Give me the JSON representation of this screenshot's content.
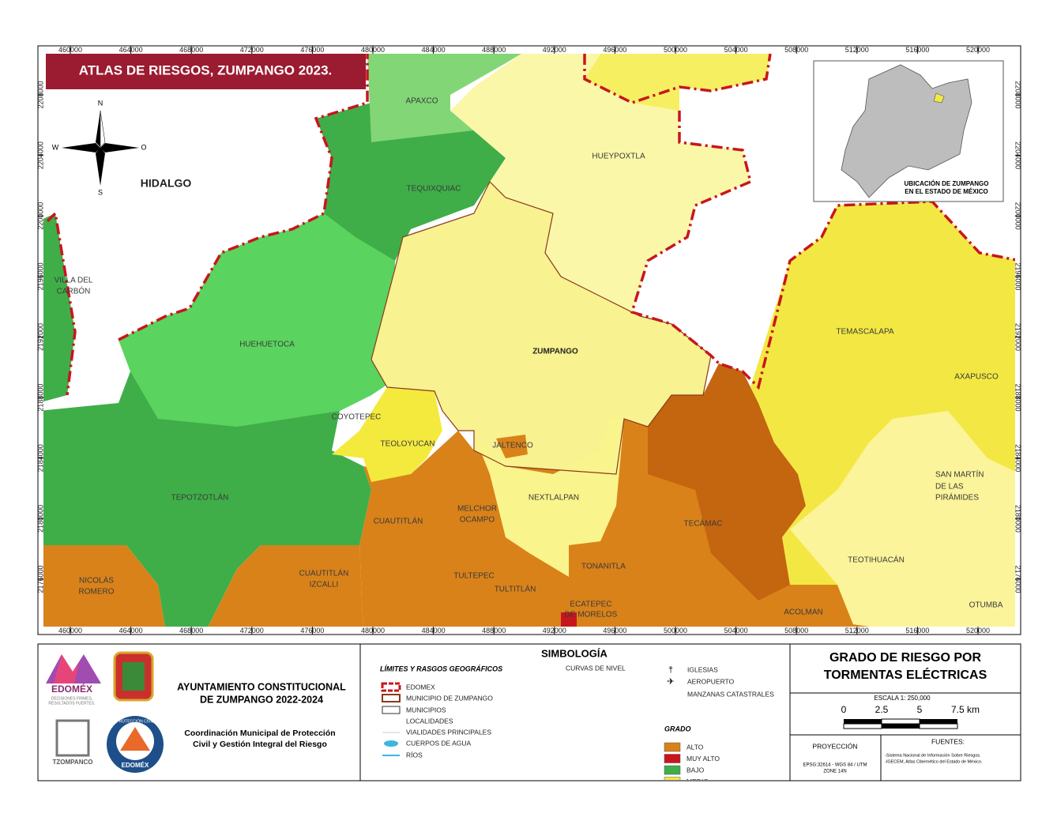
{
  "map": {
    "title": "ATLAS DE RIESGOS, ZUMPANGO 2023.",
    "xticks": [
      460000,
      464000,
      468000,
      472000,
      476000,
      480000,
      484000,
      488000,
      492000,
      496000,
      500000,
      504000,
      508000,
      512000,
      516000,
      520000
    ],
    "yticks": [
      2208000,
      2204000,
      2200000,
      2196000,
      2192000,
      2188000,
      2184000,
      2180000,
      2176000
    ],
    "compass": {
      "n": "N",
      "w": "W",
      "e": "O",
      "s": "S"
    },
    "labels": [
      [
        "HIDALGO"
      ],
      [
        "APAXCO"
      ],
      [
        "HUEYPOXTLA"
      ],
      [
        "TEQUIXQUIAC"
      ],
      [
        "VILLA DEL",
        "CARBÓN"
      ],
      [
        "HUEHUETOCA"
      ],
      [
        "ZUMPANGO"
      ],
      [
        "TEMASCALAPA"
      ],
      [
        "AXAPUSCO"
      ],
      [
        "COYOTEPEC"
      ],
      [
        "TEOLOYUCAN"
      ],
      [
        "JALTENCO"
      ],
      [
        "NEXTLALPAN"
      ],
      [
        "SAN MARTÍN",
        "DE LAS",
        "PIRÁMIDES"
      ],
      [
        "TEPOTZOTLÁN"
      ],
      [
        "CUAUTITLÁN"
      ],
      [
        "MELCHOR",
        "OCAMPO"
      ],
      [
        "TECÁMAC"
      ],
      [
        "NICOLÁS",
        "ROMERO"
      ],
      [
        "CUAUTITLÁN",
        "IZCALLI"
      ],
      [
        "TULTEPEC"
      ],
      [
        "TULTITLÁN"
      ],
      [
        "TONANITLA"
      ],
      [
        "ECATEPEC",
        "DE MORELOS"
      ],
      [
        "ACOLMAN"
      ],
      [
        "TEOTIHUACÁN"
      ],
      [
        "OTUMBA"
      ]
    ],
    "inset_caption": [
      "UBICACIÓN DE ZUMPANGO",
      "EN EL ESTADO DE MÉXICO"
    ]
  },
  "footer": {
    "logo_text": "EDOMÉX",
    "logo_tagline": [
      "DECISIONES FIRMES,",
      "RESULTADOS FUERTES."
    ],
    "tzompanco": "TZOMPANCO",
    "badge": [
      "PROTECCIÓN CIVIL",
      "EDOMÉX"
    ],
    "ayuntamiento": [
      "AYUNTAMIENTO CONSTITUCIONAL",
      "DE ZUMPANGO 2022-2024"
    ],
    "coordinacion": [
      "Coordinación Municipal de Protección",
      "Civil y Gestión Integral del Riesgo"
    ],
    "legend": {
      "title": "SIMBOLOGÍA",
      "limits_title": "LÍMITES Y RASGOS GEOGRÁFICOS",
      "limits": [
        "EDOMEX",
        "MUNICIPIO DE ZUMPANGO",
        "MUNICIPIOS",
        "LOCALIDADES",
        "VIALIDADES PRINCIPALES",
        "CUERPOS DE AGUA",
        "RÍOS"
      ],
      "other": [
        "CURVAS DE NIVEL",
        "IGLESIAS",
        "AEROPUERTO",
        "MANZANAS CATASTRALES"
      ],
      "grade_title": "GRADO",
      "grades": [
        {
          "label": "ALTO",
          "color": "#d9821a"
        },
        {
          "label": "MUY ALTO",
          "color": "#c8161d"
        },
        {
          "label": "BAJO",
          "color": "#3fae49"
        },
        {
          "label": "MEDIO",
          "color": "#f3e843"
        }
      ]
    },
    "panel": {
      "title": [
        "GRADO DE RIESGO POR",
        "TORMENTAS ELÉCTRICAS"
      ],
      "scale_title": "ESCALA 1: 250,000",
      "scale_ticks": [
        "0",
        "2.5",
        "5",
        "7.5 km"
      ],
      "projection_title": "PROYECCIÓN",
      "projection": [
        "EPSG:32614 - WGS 84 / UTM",
        "ZONE 14N"
      ],
      "sources_title": "FUENTES:",
      "sources": [
        "-Sistema Nacional de Información Sobre Riesgos.",
        "-IGECEM, Atlas Cibernético del Estado de México."
      ]
    }
  }
}
